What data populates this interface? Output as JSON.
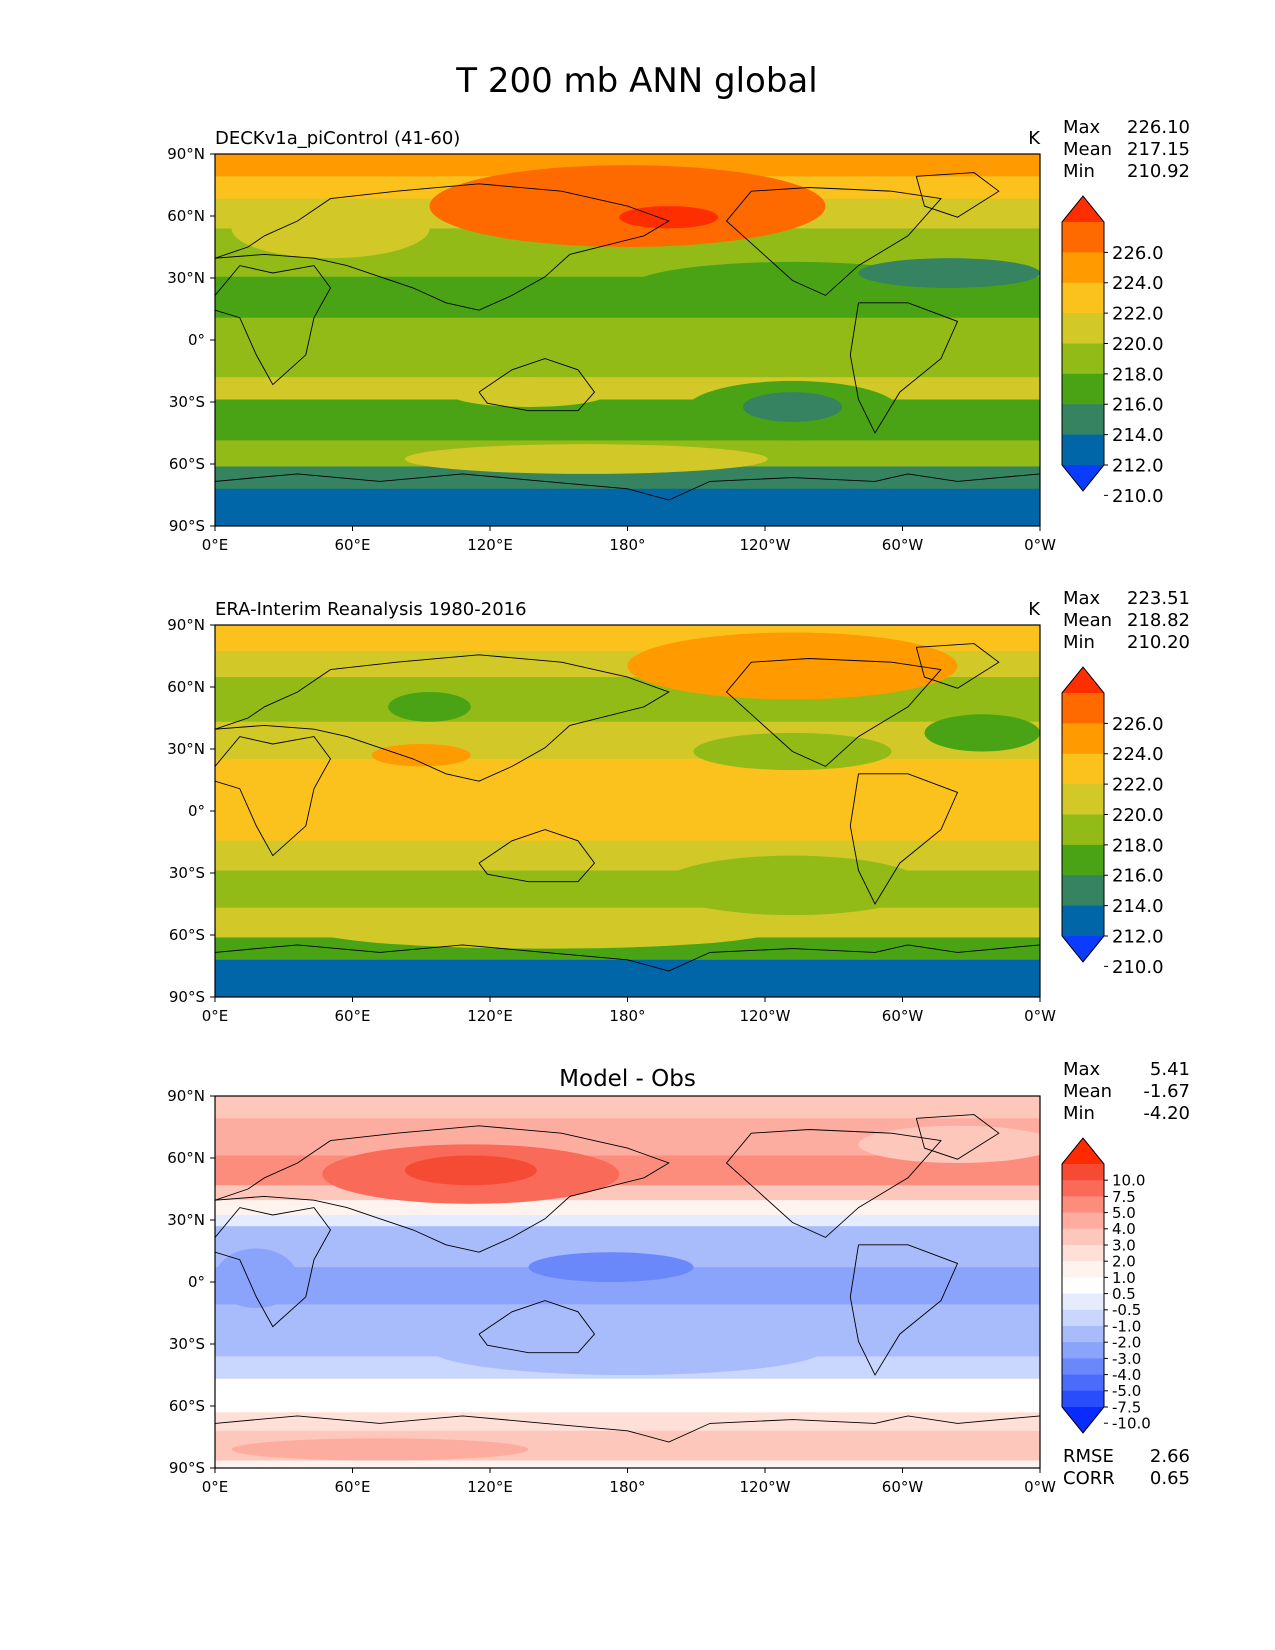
{
  "title": "T 200 mb ANN global",
  "longitude_ticks": [
    "0°E",
    "60°E",
    "120°E",
    "180°",
    "120°W",
    "60°W",
    "0°W"
  ],
  "latitude_ticks": [
    "90°N",
    "60°N",
    "30°N",
    "0°",
    "30°S",
    "60°S",
    "90°S"
  ],
  "panels": [
    {
      "id": "model",
      "left_title": "DECKv1a_piControl (41-60)",
      "center_title": "",
      "units": "K",
      "stats": [
        {
          "label": "Max",
          "value": "226.10"
        },
        {
          "label": "Mean",
          "value": "217.15"
        },
        {
          "label": "Min",
          "value": "210.92"
        }
      ],
      "bottom_stats": []
    },
    {
      "id": "obs",
      "left_title": "ERA-Interim Reanalysis 1980-2016",
      "center_title": "",
      "units": "K",
      "stats": [
        {
          "label": "Max",
          "value": "223.51"
        },
        {
          "label": "Mean",
          "value": "218.82"
        },
        {
          "label": "Min",
          "value": "210.20"
        }
      ],
      "bottom_stats": []
    },
    {
      "id": "diff",
      "left_title": "",
      "center_title": "Model - Obs",
      "units": "",
      "stats": [
        {
          "label": "Max",
          "value": "5.41"
        },
        {
          "label": "Mean",
          "value": "-1.67"
        },
        {
          "label": "Min",
          "value": "-4.20"
        }
      ],
      "bottom_stats": [
        {
          "label": "RMSE",
          "value": "2.66"
        },
        {
          "label": "CORR",
          "value": "0.65"
        }
      ]
    }
  ],
  "colorbars": {
    "field": {
      "labels": [
        "226.0",
        "224.0",
        "222.0",
        "220.0",
        "218.0",
        "216.0",
        "214.0",
        "212.0",
        "210.0"
      ],
      "colors": [
        "#ff2e00",
        "#ff6a00",
        "#ff9a00",
        "#fbc21e",
        "#d2c828",
        "#92bb18",
        "#4aa315",
        "#358360",
        "#0066a8",
        "#0a3cff"
      ]
    },
    "diff": {
      "labels": [
        "10.0",
        "7.5",
        "5.0",
        "4.0",
        "3.0",
        "2.0",
        "1.0",
        "0.5",
        "-0.5",
        "-1.0",
        "-2.0",
        "-3.0",
        "-4.0",
        "-5.0",
        "-7.5",
        "-10.0"
      ],
      "colors": [
        "#ff2a00",
        "#f54a33",
        "#fa6a58",
        "#fc8d7d",
        "#fdada0",
        "#fec7bc",
        "#fee0d8",
        "#fff3ef",
        "#ffffff",
        "#e6ecff",
        "#c9d6fd",
        "#a8bbfb",
        "#8aa3fb",
        "#6b88fb",
        "#4b6cfb",
        "#2a4dfc",
        "#0a2bff"
      ]
    }
  },
  "chart_data": [
    {
      "type": "heatmap",
      "title": "DECKv1a_piControl (41-60)",
      "units": "K",
      "x_range": [
        0,
        360
      ],
      "y_range": [
        -90,
        90
      ],
      "levels": [
        210,
        212,
        214,
        216,
        218,
        220,
        222,
        224,
        226
      ],
      "max": 226.1,
      "mean": 217.15,
      "min": 210.92
    },
    {
      "type": "heatmap",
      "title": "ERA-Interim Reanalysis 1980-2016",
      "units": "K",
      "x_range": [
        0,
        360
      ],
      "y_range": [
        -90,
        90
      ],
      "levels": [
        210,
        212,
        214,
        216,
        218,
        220,
        222,
        224,
        226
      ],
      "max": 223.51,
      "mean": 218.82,
      "min": 210.2
    },
    {
      "type": "heatmap",
      "title": "Model - Obs",
      "x_range": [
        0,
        360
      ],
      "y_range": [
        -90,
        90
      ],
      "levels": [
        -10,
        -7.5,
        -5,
        -4,
        -3,
        -2,
        -1,
        -0.5,
        0.5,
        1,
        2,
        3,
        4,
        5,
        7.5,
        10
      ],
      "max": 5.41,
      "mean": -1.67,
      "min": -4.2,
      "rmse": 2.66,
      "corr": 0.65
    }
  ]
}
